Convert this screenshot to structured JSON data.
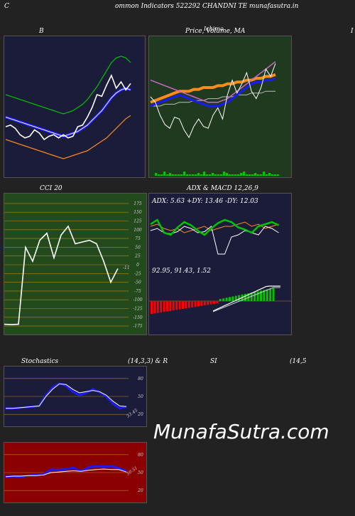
{
  "header": {
    "left_letter": "C",
    "title": "ommon  Indicators 522292  CHANDNI TE munafasutra.in"
  },
  "panels": {
    "bb": {
      "title": "B"
    },
    "price": {
      "title": "Price,  Volume, MA",
      "overlap": "Ichimo"
    },
    "right_edge": {
      "title": "I"
    },
    "cci": {
      "title": "CCI 20",
      "last": "-11"
    },
    "adx": {
      "title": "ADX  & MACD 12,26,9",
      "values": "ADX: 5.63 +DY: 13.46  -DY: 12.03"
    },
    "macd": {
      "values": "92.95,  91.43,  1.52"
    },
    "stoch": {
      "title": "Stochastics",
      "params": "(14,3,3) & R",
      "last": "33.45"
    },
    "rsi": {
      "title": "SI",
      "params": "(14,5",
      "last": "50.51"
    }
  },
  "colors": {
    "bg": "#222222",
    "navy": "#1b1b3a",
    "green_panel": "#1f3a1f",
    "cci_panel": "#234a1d",
    "rsi_panel": "#8b0000",
    "grid_orange": "#b8860b",
    "blue": "#1a1aff",
    "green_line": "#00c400",
    "orange": "#ff8c1a",
    "red": "#ff0000"
  },
  "watermark": "MunafaSutra.com",
  "chart_data": [
    {
      "type": "line",
      "name": "bollinger",
      "series": [
        {
          "values": [
            118,
            117,
            116,
            115,
            114,
            113,
            112,
            111,
            110,
            109,
            108,
            107,
            106,
            107,
            108,
            110,
            112,
            115,
            119,
            123,
            128,
            133,
            138,
            141,
            142,
            141,
            138
          ]
        },
        {
          "values": [
            104,
            103,
            102,
            101,
            100,
            99,
            98,
            97,
            96,
            95,
            94,
            93,
            92,
            93,
            94,
            95,
            97,
            99,
            102,
            105,
            108,
            112,
            116,
            119,
            121,
            122,
            121
          ]
        },
        {
          "values": [
            90,
            89,
            88,
            87,
            86,
            85,
            84,
            83,
            82,
            81,
            80,
            79,
            78,
            79,
            80,
            81,
            82,
            83,
            85,
            87,
            89,
            91,
            94,
            97,
            100,
            103,
            105
          ]
        },
        {
          "values": [
            98,
            99,
            97,
            93,
            91,
            92,
            96,
            94,
            90,
            92,
            93,
            91,
            93,
            91,
            92,
            98,
            99,
            104,
            110,
            118,
            117,
            124,
            130,
            122,
            126,
            121,
            125
          ]
        }
      ],
      "ylim": [
        70,
        150
      ]
    },
    {
      "type": "line",
      "name": "price",
      "series": [
        {
          "values": [
            115,
            112,
            105,
            100,
            98,
            104,
            103,
            97,
            93,
            99,
            103,
            99,
            98,
            105,
            109,
            103,
            116,
            124,
            117,
            122,
            128,
            118,
            114,
            120,
            130,
            126,
            133
          ]
        },
        {
          "values": [
            124,
            123,
            122,
            121,
            120,
            119,
            118,
            117,
            116,
            115,
            114,
            113,
            112,
            112,
            112,
            113,
            114,
            116,
            118,
            120,
            122,
            124,
            126,
            128,
            130,
            132,
            134
          ]
        },
        {
          "values": [
            112,
            113,
            114,
            115,
            116,
            117,
            118,
            118,
            118,
            119,
            119,
            120,
            120,
            120,
            121,
            121,
            122,
            122,
            123,
            123,
            124,
            124,
            125,
            125,
            126,
            126,
            127
          ]
        },
        {
          "values": [
            110,
            110,
            110,
            111,
            111,
            111,
            112,
            112,
            112,
            113,
            113,
            113,
            114,
            114,
            114,
            115,
            115,
            115,
            116,
            116,
            116,
            117,
            117,
            117,
            118,
            118,
            118
          ]
        }
      ],
      "ylim": [
        90,
        140
      ]
    },
    {
      "type": "line",
      "name": "cci",
      "ticks": [
        175,
        150,
        125,
        100,
        75,
        50,
        25,
        0,
        -25,
        -50,
        -75,
        -100,
        -125,
        -150,
        -175
      ],
      "values": [
        -170,
        -171,
        -170,
        50,
        10,
        70,
        90,
        20,
        85,
        110,
        60,
        65,
        70,
        60,
        10,
        -50,
        -11
      ],
      "ylim": [
        -187,
        187
      ]
    },
    {
      "type": "line",
      "name": "stochastics",
      "ticks": [
        80,
        50,
        20
      ],
      "series": [
        {
          "values": [
            30,
            30,
            31,
            32,
            33,
            34,
            52,
            65,
            72,
            68,
            58,
            52,
            56,
            62,
            57,
            50,
            38,
            30,
            33
          ]
        },
        {
          "values": [
            30,
            30,
            31,
            32,
            33,
            34,
            50,
            62,
            71,
            70,
            62,
            56,
            58,
            60,
            58,
            52,
            42,
            34,
            33
          ]
        }
      ],
      "ylim": [
        0,
        100
      ]
    },
    {
      "type": "line",
      "name": "rsi",
      "ticks": [
        80,
        50,
        20
      ],
      "series": [
        {
          "values": [
            43,
            44,
            43,
            45,
            46,
            47,
            55,
            54,
            56,
            58,
            52,
            59,
            61,
            60,
            61,
            57,
            53
          ]
        },
        {
          "values": [
            43,
            44,
            44,
            45,
            45,
            46,
            50,
            51,
            52,
            53,
            52,
            54,
            55,
            56,
            55,
            55,
            51
          ]
        }
      ],
      "ylim": [
        0,
        100
      ]
    }
  ]
}
